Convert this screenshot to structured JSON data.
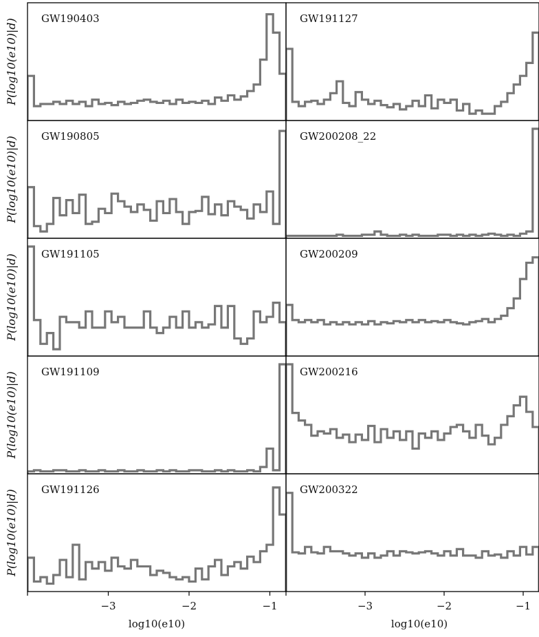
{
  "chart_data": {
    "type": "histogram-grid",
    "bin_edges_start": -4.0,
    "bin_edges_end": -0.8,
    "nbins": 40,
    "xlim": [
      -4.0,
      -0.8
    ],
    "xticks": [
      -3,
      -2,
      -1
    ],
    "xtick_labels": [
      "−3",
      "−2",
      "−1"
    ],
    "xlabel": "log10(e10)",
    "ylabel": "P(log10(e10)|d)",
    "line_color": "#777777",
    "columns": [
      {
        "panels": [
          {
            "label": "GW190403",
            "ymax": 1.0,
            "values": [
              0.4,
              0.12,
              0.14,
              0.14,
              0.16,
              0.14,
              0.17,
              0.14,
              0.16,
              0.12,
              0.18,
              0.14,
              0.15,
              0.13,
              0.16,
              0.14,
              0.15,
              0.17,
              0.18,
              0.16,
              0.15,
              0.17,
              0.14,
              0.18,
              0.15,
              0.16,
              0.15,
              0.17,
              0.14,
              0.2,
              0.17,
              0.22,
              0.18,
              0.21,
              0.26,
              0.32,
              0.55,
              0.97,
              0.8,
              0.42
            ]
          },
          {
            "label": "GW190805",
            "ymax": 1.0,
            "values": [
              0.46,
              0.1,
              0.05,
              0.12,
              0.36,
              0.2,
              0.34,
              0.22,
              0.39,
              0.12,
              0.14,
              0.26,
              0.22,
              0.4,
              0.33,
              0.28,
              0.23,
              0.3,
              0.25,
              0.15,
              0.33,
              0.22,
              0.35,
              0.23,
              0.12,
              0.23,
              0.24,
              0.37,
              0.21,
              0.3,
              0.2,
              0.33,
              0.28,
              0.25,
              0.17,
              0.3,
              0.23,
              0.42,
              0.12,
              0.98
            ]
          },
          {
            "label": "GW191105",
            "ymax": 1.0,
            "values": [
              1.0,
              0.32,
              0.1,
              0.2,
              0.05,
              0.35,
              0.3,
              0.3,
              0.25,
              0.4,
              0.25,
              0.25,
              0.4,
              0.3,
              0.35,
              0.25,
              0.25,
              0.25,
              0.4,
              0.25,
              0.2,
              0.25,
              0.35,
              0.25,
              0.4,
              0.25,
              0.3,
              0.25,
              0.28,
              0.45,
              0.25,
              0.45,
              0.15,
              0.1,
              0.15,
              0.4,
              0.3,
              0.35,
              0.48,
              0.3
            ]
          },
          {
            "label": "GW191109",
            "ymax": 1.0,
            "values": [
              0.01,
              0.02,
              0.01,
              0.01,
              0.02,
              0.02,
              0.01,
              0.01,
              0.02,
              0.01,
              0.01,
              0.02,
              0.01,
              0.01,
              0.02,
              0.01,
              0.01,
              0.02,
              0.01,
              0.01,
              0.02,
              0.01,
              0.02,
              0.01,
              0.01,
              0.02,
              0.02,
              0.01,
              0.01,
              0.02,
              0.01,
              0.02,
              0.01,
              0.01,
              0.02,
              0.01,
              0.05,
              0.22,
              0.02,
              1.0
            ]
          },
          {
            "label": "GW191126",
            "ymax": 1.0,
            "values": [
              0.3,
              0.08,
              0.12,
              0.06,
              0.14,
              0.28,
              0.12,
              0.42,
              0.1,
              0.26,
              0.2,
              0.26,
              0.18,
              0.3,
              0.22,
              0.2,
              0.28,
              0.22,
              0.22,
              0.14,
              0.18,
              0.16,
              0.12,
              0.1,
              0.12,
              0.08,
              0.2,
              0.1,
              0.22,
              0.28,
              0.14,
              0.22,
              0.26,
              0.2,
              0.31,
              0.26,
              0.36,
              0.42,
              0.95,
              0.7
            ]
          }
        ]
      },
      {
        "panels": [
          {
            "label": "GW191127",
            "ymax": 1.0,
            "values": [
              0.65,
              0.16,
              0.12,
              0.16,
              0.17,
              0.14,
              0.18,
              0.24,
              0.35,
              0.15,
              0.12,
              0.25,
              0.18,
              0.14,
              0.17,
              0.13,
              0.11,
              0.14,
              0.09,
              0.12,
              0.17,
              0.12,
              0.22,
              0.1,
              0.18,
              0.15,
              0.18,
              0.08,
              0.14,
              0.05,
              0.08,
              0.05,
              0.05,
              0.12,
              0.16,
              0.24,
              0.32,
              0.4,
              0.52,
              0.8
            ]
          },
          {
            "label": "GW200208_22",
            "ymax": 1.0,
            "values": [
              0.01,
              0.01,
              0.01,
              0.01,
              0.01,
              0.01,
              0.01,
              0.01,
              0.02,
              0.01,
              0.01,
              0.01,
              0.02,
              0.02,
              0.05,
              0.02,
              0.01,
              0.01,
              0.02,
              0.01,
              0.02,
              0.01,
              0.01,
              0.01,
              0.02,
              0.02,
              0.01,
              0.02,
              0.01,
              0.02,
              0.01,
              0.02,
              0.03,
              0.02,
              0.01,
              0.02,
              0.01,
              0.03,
              0.05,
              1.0
            ]
          },
          {
            "label": "GW200209",
            "ymax": 1.0,
            "values": [
              0.46,
              0.32,
              0.3,
              0.32,
              0.3,
              0.32,
              0.28,
              0.3,
              0.28,
              0.3,
              0.28,
              0.3,
              0.28,
              0.31,
              0.28,
              0.3,
              0.29,
              0.31,
              0.3,
              0.32,
              0.3,
              0.32,
              0.3,
              0.31,
              0.3,
              0.32,
              0.3,
              0.29,
              0.28,
              0.3,
              0.31,
              0.33,
              0.3,
              0.33,
              0.36,
              0.43,
              0.52,
              0.7,
              0.85,
              0.9
            ]
          },
          {
            "label": "GW200216",
            "ymax": 1.0,
            "values": [
              1.0,
              0.55,
              0.48,
              0.44,
              0.34,
              0.38,
              0.36,
              0.4,
              0.32,
              0.35,
              0.28,
              0.35,
              0.3,
              0.43,
              0.28,
              0.4,
              0.32,
              0.38,
              0.3,
              0.38,
              0.22,
              0.36,
              0.32,
              0.38,
              0.3,
              0.36,
              0.42,
              0.44,
              0.38,
              0.32,
              0.44,
              0.34,
              0.26,
              0.32,
              0.44,
              0.52,
              0.62,
              0.7,
              0.56,
              0.42
            ]
          },
          {
            "label": "GW200322",
            "ymax": 1.0,
            "values": [
              0.9,
              0.35,
              0.34,
              0.4,
              0.35,
              0.34,
              0.4,
              0.36,
              0.36,
              0.34,
              0.32,
              0.34,
              0.3,
              0.34,
              0.3,
              0.32,
              0.36,
              0.32,
              0.36,
              0.35,
              0.34,
              0.35,
              0.36,
              0.34,
              0.32,
              0.36,
              0.32,
              0.38,
              0.32,
              0.32,
              0.3,
              0.36,
              0.32,
              0.33,
              0.3,
              0.36,
              0.32,
              0.4,
              0.33,
              0.4
            ]
          }
        ]
      }
    ]
  }
}
